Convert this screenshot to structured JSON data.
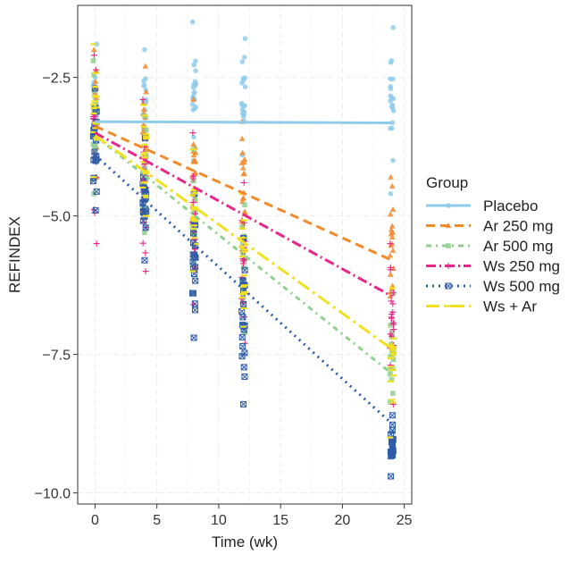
{
  "chart_data": {
    "type": "scatter",
    "xlabel": "Time (wk)",
    "ylabel": "REFINDEX",
    "xlim": [
      -1.4,
      25.6
    ],
    "ylim": [
      -10.2,
      -1.2
    ],
    "xticks": [
      0,
      5,
      10,
      15,
      20,
      25
    ],
    "yticks": [
      -2.5,
      -5.0,
      -7.5,
      -10.0
    ],
    "ytick_labels": [
      "−2.5",
      "−5.0",
      "−7.5",
      "−10.0"
    ],
    "grid": true,
    "legend_title": "Group",
    "legend_position": "right",
    "time_points": [
      0,
      4,
      8,
      12,
      24
    ],
    "series": [
      {
        "name": "Placebo",
        "color": "#8FCCEB",
        "dash": "solid",
        "marker": "circle",
        "fit": {
          "start": -3.3,
          "end": -3.32
        },
        "ranges": [
          [
            -1.9,
            -4.0
          ],
          [
            -2.0,
            -4.0
          ],
          [
            -1.5,
            -4.0
          ],
          [
            -1.8,
            -3.9
          ],
          [
            -1.6,
            -4.6
          ]
        ]
      },
      {
        "name": "Ar 250 mg",
        "color": "#F28A2B",
        "dash": "dashed",
        "marker": "triangle",
        "fit": {
          "start": -3.38,
          "end": -5.8
        },
        "ranges": [
          [
            -2.0,
            -4.3
          ],
          [
            -2.3,
            -4.9
          ],
          [
            -2.9,
            -5.2
          ],
          [
            -3.3,
            -5.6
          ],
          [
            -4.3,
            -7.3
          ]
        ]
      },
      {
        "name": "Ar 500 mg",
        "color": "#8FD08F",
        "dash": "dashdot-light",
        "marker": "square",
        "fit": {
          "start": -3.55,
          "end": -7.85
        },
        "ranges": [
          [
            -2.2,
            -4.6
          ],
          [
            -3.2,
            -5.3
          ],
          [
            -3.8,
            -6.4
          ],
          [
            -4.8,
            -7.1
          ],
          [
            -6.4,
            -8.9
          ]
        ]
      },
      {
        "name": "Ws 250 mg",
        "color": "#E8268A",
        "dash": "dashdot",
        "marker": "plus",
        "fit": {
          "start": -3.5,
          "end": -6.45
        },
        "ranges": [
          [
            -2.1,
            -5.5
          ],
          [
            -2.9,
            -6.0
          ],
          [
            -3.5,
            -6.6
          ],
          [
            -4.4,
            -7.3
          ],
          [
            -5.5,
            -8.4
          ]
        ]
      },
      {
        "name": "Ws 500 mg",
        "color": "#2E5BA8",
        "dash": "dotted",
        "marker": "boxx",
        "fit": {
          "start": -3.9,
          "end": -8.75
        },
        "ranges": [
          [
            -2.7,
            -4.9
          ],
          [
            -3.6,
            -5.8
          ],
          [
            -4.6,
            -7.2
          ],
          [
            -5.4,
            -8.4
          ],
          [
            -8.6,
            -9.7
          ]
        ]
      },
      {
        "name": "Ws + Ar",
        "color": "#F0E020",
        "dash": "longdash",
        "marker": "dotline",
        "fit": {
          "start": -3.55,
          "end": -7.4
        },
        "ranges": [
          [
            -1.9,
            -4.3
          ],
          [
            -3.0,
            -5.0
          ],
          [
            -3.8,
            -6.0
          ],
          [
            -4.6,
            -7.0
          ],
          [
            -6.3,
            -9.0
          ]
        ]
      }
    ]
  }
}
